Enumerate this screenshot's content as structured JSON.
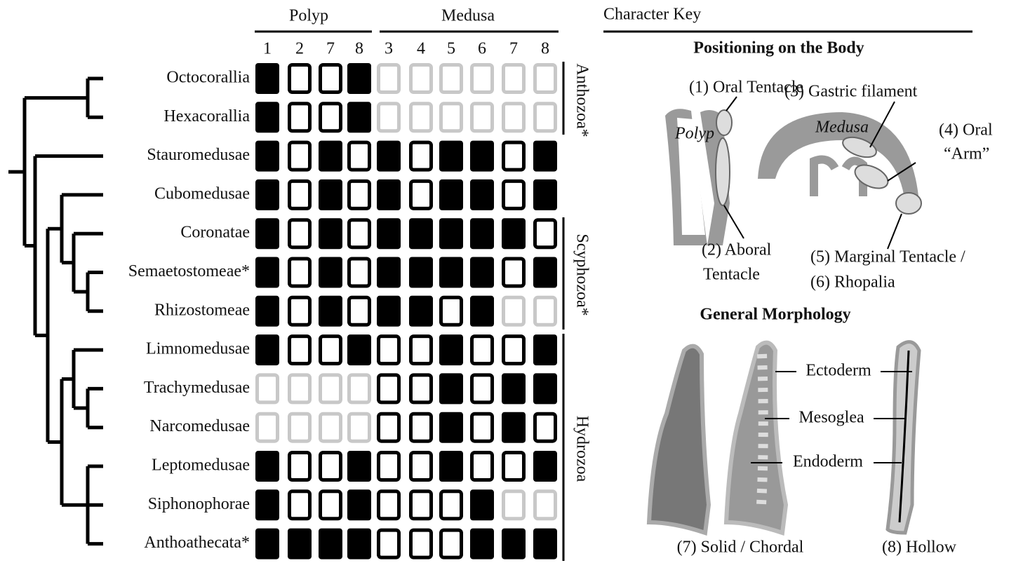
{
  "header": {
    "polyp": "Polyp",
    "medusa": "Medusa",
    "columns": [
      1,
      2,
      7,
      8,
      3,
      4,
      5,
      6,
      7,
      8
    ]
  },
  "taxa": [
    {
      "name": "Octocorallia",
      "states": [
        1,
        0,
        0,
        1,
        null,
        null,
        null,
        null,
        null,
        null
      ]
    },
    {
      "name": "Hexacorallia",
      "states": [
        1,
        0,
        0,
        1,
        null,
        null,
        null,
        null,
        null,
        null
      ]
    },
    {
      "name": "Stauromedusae",
      "states": [
        1,
        0,
        1,
        0,
        1,
        0,
        1,
        1,
        0,
        1
      ]
    },
    {
      "name": "Cubomedusae",
      "states": [
        1,
        0,
        1,
        0,
        1,
        0,
        1,
        1,
        0,
        1
      ]
    },
    {
      "name": "Coronatae",
      "states": [
        1,
        0,
        1,
        0,
        1,
        1,
        1,
        1,
        1,
        0
      ]
    },
    {
      "name": "Semaetostomeae*",
      "states": [
        1,
        0,
        1,
        0,
        1,
        1,
        1,
        1,
        0,
        1
      ]
    },
    {
      "name": "Rhizostomeae",
      "states": [
        1,
        0,
        1,
        0,
        1,
        1,
        0,
        1,
        null,
        null
      ]
    },
    {
      "name": "Limnomedusae",
      "states": [
        1,
        0,
        0,
        1,
        0,
        0,
        1,
        0,
        0,
        1
      ]
    },
    {
      "name": "Trachymedusae",
      "states": [
        null,
        null,
        null,
        null,
        0,
        0,
        1,
        0,
        1,
        1
      ]
    },
    {
      "name": "Narcomedusae",
      "states": [
        null,
        null,
        null,
        null,
        0,
        0,
        1,
        0,
        1,
        0
      ]
    },
    {
      "name": "Leptomedusae",
      "states": [
        1,
        0,
        0,
        1,
        0,
        0,
        1,
        0,
        0,
        1
      ]
    },
    {
      "name": "Siphonophorae",
      "states": [
        1,
        0,
        0,
        1,
        0,
        0,
        0,
        1,
        null,
        null
      ]
    },
    {
      "name": "Anthoathecata*",
      "states": [
        1,
        1,
        1,
        1,
        0,
        0,
        0,
        1,
        1,
        1
      ]
    }
  ],
  "groups": [
    "Anthozoa*",
    "Scyphozoa*",
    "Hydrozoa"
  ],
  "key": {
    "title": "Character Key",
    "positioning": "Positioning on the Body",
    "polyp": "Polyp",
    "medusa": "Medusa",
    "oral_tentacle": "(1) Oral Tentacle",
    "aboral_tentacle": [
      "(2) Aboral",
      "Tentacle"
    ],
    "gastric_filament": "(3) Gastric filament",
    "oral_arm": [
      "(4) Oral",
      "“Arm”"
    ],
    "marginal": [
      "(5) Marginal Tentacle /",
      "(6) Rhopalia"
    ],
    "morphology": "General Morphology",
    "ectoderm": "Ectoderm",
    "mesoglea": "Mesoglea",
    "endoderm": "Endoderm",
    "solid": "(7) Solid / Chordal",
    "hollow": "(8) Hollow"
  }
}
